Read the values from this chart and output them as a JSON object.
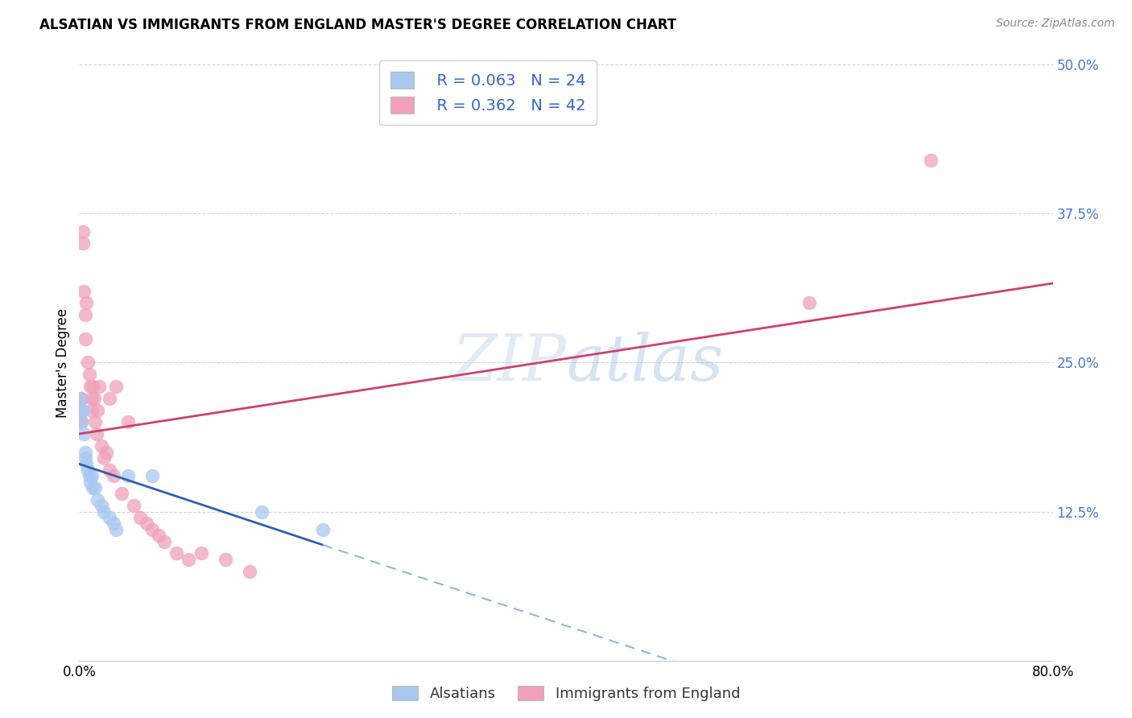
{
  "title": "ALSATIAN VS IMMIGRANTS FROM ENGLAND MASTER'S DEGREE CORRELATION CHART",
  "source": "Source: ZipAtlas.com",
  "ylabel": "Master's Degree",
  "x_min": 0.0,
  "x_max": 0.8,
  "y_min": 0.0,
  "y_max": 0.5,
  "y_ticks": [
    0.0,
    0.125,
    0.25,
    0.375,
    0.5
  ],
  "legend_labels": [
    "Alsatians",
    "Immigrants from England"
  ],
  "legend_r": [
    "R = 0.063",
    "N = 24"
  ],
  "legend_n": [
    "R = 0.362",
    "N = 42"
  ],
  "blue_color": "#A8C8F0",
  "pink_color": "#F0A0B8",
  "blue_line_color": "#3060B0",
  "pink_line_color": "#D04070",
  "dash_line_color": "#90B8D8",
  "watermark_zip": "ZIP",
  "watermark_atlas": "atlas",
  "alsatian_x": [
    0.001,
    0.002,
    0.002,
    0.003,
    0.004,
    0.005,
    0.005,
    0.006,
    0.007,
    0.008,
    0.009,
    0.01,
    0.011,
    0.013,
    0.015,
    0.018,
    0.02,
    0.025,
    0.028,
    0.03,
    0.04,
    0.06,
    0.15,
    0.2
  ],
  "alsatian_y": [
    0.22,
    0.21,
    0.2,
    0.21,
    0.19,
    0.175,
    0.17,
    0.165,
    0.16,
    0.155,
    0.15,
    0.155,
    0.145,
    0.145,
    0.135,
    0.13,
    0.125,
    0.12,
    0.115,
    0.11,
    0.155,
    0.155,
    0.125,
    0.11
  ],
  "england_x": [
    0.001,
    0.002,
    0.002,
    0.003,
    0.003,
    0.004,
    0.005,
    0.005,
    0.006,
    0.007,
    0.008,
    0.009,
    0.01,
    0.01,
    0.011,
    0.012,
    0.013,
    0.014,
    0.015,
    0.016,
    0.018,
    0.02,
    0.022,
    0.025,
    0.025,
    0.028,
    0.03,
    0.035,
    0.04,
    0.045,
    0.05,
    0.055,
    0.06,
    0.065,
    0.07,
    0.08,
    0.09,
    0.1,
    0.12,
    0.14,
    0.6,
    0.7
  ],
  "england_y": [
    0.21,
    0.22,
    0.2,
    0.36,
    0.35,
    0.31,
    0.29,
    0.27,
    0.3,
    0.25,
    0.24,
    0.23,
    0.22,
    0.21,
    0.23,
    0.22,
    0.2,
    0.19,
    0.21,
    0.23,
    0.18,
    0.17,
    0.175,
    0.22,
    0.16,
    0.155,
    0.23,
    0.14,
    0.2,
    0.13,
    0.12,
    0.115,
    0.11,
    0.105,
    0.1,
    0.09,
    0.085,
    0.09,
    0.085,
    0.075,
    0.3,
    0.42
  ]
}
